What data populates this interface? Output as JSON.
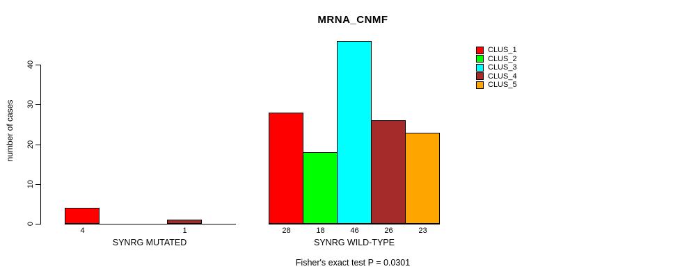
{
  "chart_data": {
    "type": "bar",
    "title": "MRNA_CNMF",
    "ylabel": "number of cases",
    "xlabel": "",
    "ylim": [
      0,
      46
    ],
    "y_ticks": [
      0,
      10,
      20,
      30,
      40
    ],
    "grid": false,
    "legend_position": "outside-top-right",
    "series_labels": [
      "CLUS_1",
      "CLUS_2",
      "CLUS_3",
      "CLUS_4",
      "CLUS_5"
    ],
    "series_colors": [
      "#ff0000",
      "#00ff00",
      "#00ffff",
      "#a52a2a",
      "#ffa500"
    ],
    "groups": [
      {
        "label": "SYNRG MUTATED",
        "values": [
          4,
          0,
          0,
          1,
          0
        ],
        "bar_labels": [
          "4",
          "",
          "",
          "1",
          ""
        ]
      },
      {
        "label": "SYNRG WILD-TYPE",
        "values": [
          28,
          18,
          46,
          26,
          23
        ],
        "bar_labels": [
          "28",
          "18",
          "46",
          "26",
          "23"
        ]
      }
    ],
    "annotation": "Fisher's exact test P = 0.0301",
    "axis_color": "#000000",
    "bar_border_color": "#000000",
    "background_color": "#ffffff"
  }
}
